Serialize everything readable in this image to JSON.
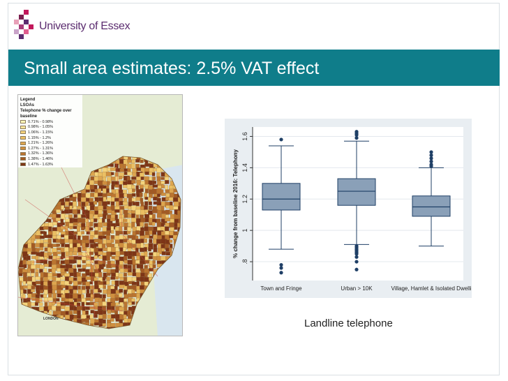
{
  "header": {
    "brand": "University of Essex",
    "logo": "essex-logo-squares"
  },
  "slide": {
    "title": "Small area estimates: 2.5% VAT effect",
    "caption": "Landline telephone"
  },
  "map": {
    "legend_title": "Legend",
    "legend_subtitle": "LSOAs",
    "legend_field": "Telephone % change over baseline",
    "legend_items": [
      {
        "label": "0.71% - 0.98%",
        "color": "#fff7b8"
      },
      {
        "label": "0.98% - 1.05%",
        "color": "#fbe69a"
      },
      {
        "label": "1.06% - 1.15%",
        "color": "#f4d37c"
      },
      {
        "label": "1.15% - 1.2%",
        "color": "#ebbf63"
      },
      {
        "label": "1.21% - 1.26%",
        "color": "#dea64f"
      },
      {
        "label": "1.27% - 1.31%",
        "color": "#cf8f3f"
      },
      {
        "label": "1.32% - 1.36%",
        "color": "#bb7530"
      },
      {
        "label": "1.38% - 1.46%",
        "color": "#a25a24"
      },
      {
        "label": "1.47% - 1.63%",
        "color": "#7d3517"
      }
    ],
    "place_label": "LONDON"
  },
  "chart_data": {
    "type": "box",
    "ylabel": "% change from baseline 2016: Telephony",
    "ylim": [
      0.68,
      1.66
    ],
    "yticks": [
      0.8,
      1,
      1.2,
      1.4,
      1.6
    ],
    "ytick_labels": [
      ".8",
      "1",
      "1.2",
      "1.4",
      "1.6"
    ],
    "categories": [
      "Town and Fringe",
      "Urban > 10K",
      "Village, Hamlet & Isolated Dwelli"
    ],
    "boxes": [
      {
        "whisker_low": 0.88,
        "q1": 1.13,
        "median": 1.2,
        "q3": 1.3,
        "whisker_high": 1.54,
        "outliers": [
          0.78,
          0.76,
          0.73,
          1.58
        ]
      },
      {
        "whisker_low": 0.91,
        "q1": 1.16,
        "median": 1.25,
        "q3": 1.33,
        "whisker_high": 1.57,
        "outliers": [
          0.9,
          0.89,
          0.88,
          0.87,
          0.86,
          0.85,
          0.83,
          0.8,
          0.75,
          1.59,
          1.61,
          1.62,
          1.63
        ]
      },
      {
        "whisker_low": 0.9,
        "q1": 1.09,
        "median": 1.15,
        "q3": 1.22,
        "whisker_high": 1.4,
        "outliers": [
          1.41,
          1.42,
          1.44,
          1.46,
          1.48,
          1.5
        ]
      }
    ],
    "box_color": "#8aa0b8",
    "line_color": "#1f3f66"
  }
}
